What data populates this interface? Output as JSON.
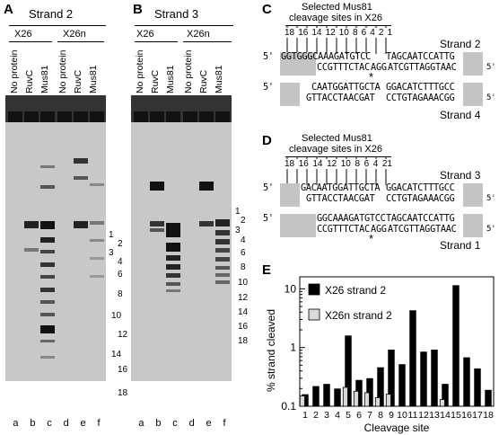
{
  "panels": {
    "A": {
      "letter": "A",
      "title": "Strand 2",
      "groups": [
        "X26",
        "X26n"
      ],
      "lanes": [
        "No protein",
        "RuvC",
        "Mus81",
        "No protein",
        "RuvC",
        "Mus81"
      ],
      "lane_letters": [
        "a",
        "b",
        "c",
        "d",
        "e",
        "f"
      ],
      "markers": [
        "1",
        "2",
        "3",
        "4",
        "6",
        "8",
        "10",
        "12",
        "14",
        "16",
        "18"
      ]
    },
    "B": {
      "letter": "B",
      "title": "Strand 3",
      "groups": [
        "X26",
        "X26n"
      ],
      "lanes": [
        "No protein",
        "RuvC",
        "Mus81",
        "No protein",
        "RuvC",
        "Mus81"
      ],
      "lane_letters": [
        "a",
        "b",
        "c",
        "d",
        "e",
        "f"
      ],
      "markers": [
        "1",
        "2",
        "3",
        "4",
        "6",
        "8",
        "10",
        "12",
        "14",
        "16",
        "18"
      ]
    },
    "C": {
      "letter": "C",
      "heading_line1": "Selected Mus81",
      "heading_line2": "cleavage sites in X26",
      "site_numbers": [
        "18",
        "16",
        "14",
        "12",
        "10",
        "8",
        "6",
        "4",
        "2",
        "1"
      ],
      "prime": "5'",
      "top_strand1": "GGTGGGCAAAGATGTCC",
      "top_strand1_right": "TAGCAATCCATTG",
      "top_strand2": "CCGTTTCTAC",
      "top_strand2_star": "A",
      "top_strand2_mid": "GG",
      "top_strand2_right": "ATCGTTAGGTAAC",
      "bot_strand1": "CAATGGATTGCTA",
      "bot_strand1_right": "GGACATCTTTGCC",
      "bot_strand2": "GTTACCTAACGAT",
      "bot_strand2_right": "CCTGTAGAAACGG",
      "strand_top": "Strand 2",
      "strand_bottom": "Strand 4",
      "star": "*"
    },
    "D": {
      "letter": "D",
      "heading_line1": "Selected Mus81",
      "heading_line2": "cleavage sites in X26",
      "site_numbers": [
        "18",
        "16",
        "14",
        "12",
        "10",
        "8",
        "6",
        "4",
        "21"
      ],
      "prime": "5'",
      "top_strand1": "GACAATGGATTGCTA",
      "top_strand1_right": "GGACATCTTTGCC",
      "top_strand2": "GTTACCTAACGAT",
      "top_strand2_right": "CCTGTAGAAACGG",
      "bot_strand1": "GGCAAAGATGTCC",
      "bot_strand1_right": "TAGCAATCCATTG",
      "bot_strand2": "CCGTTTCTAC",
      "bot_strand2_star": "A",
      "bot_strand2_mid": "GG",
      "bot_strand2_right": "ATCGTTAGGTAAC",
      "strand_top": "Strand 3",
      "strand_bottom": "Strand 1",
      "star": "*"
    },
    "E": {
      "letter": "E"
    }
  },
  "chart_data": {
    "type": "bar",
    "ylabel": "% strand cleaved",
    "xlabel": "Cleavage site",
    "yscale": "log",
    "ylim": [
      0.1,
      16
    ],
    "yticks": [
      "10",
      "1",
      "0.1"
    ],
    "categories": [
      "1",
      "2",
      "3",
      "4",
      "5",
      "6",
      "7",
      "8",
      "9",
      "10",
      "11",
      "12",
      "13",
      "14",
      "15",
      "16",
      "17",
      "18"
    ],
    "series": [
      {
        "name": "X26 strand 2",
        "color": "#000000",
        "values": [
          0.16,
          0.22,
          0.24,
          0.2,
          1.6,
          0.28,
          0.3,
          0.46,
          0.92,
          0.52,
          4.3,
          0.85,
          0.92,
          0.24,
          11.5,
          0.68,
          0.44,
          0.19
        ]
      },
      {
        "name": "X26n strand 2",
        "color": "#d9d9d9",
        "values": [
          0.15,
          null,
          null,
          null,
          0.21,
          0.18,
          0.17,
          0.14,
          0.16,
          null,
          null,
          null,
          null,
          0.13,
          null,
          null,
          null,
          null
        ]
      }
    ],
    "legend": "top-left"
  }
}
